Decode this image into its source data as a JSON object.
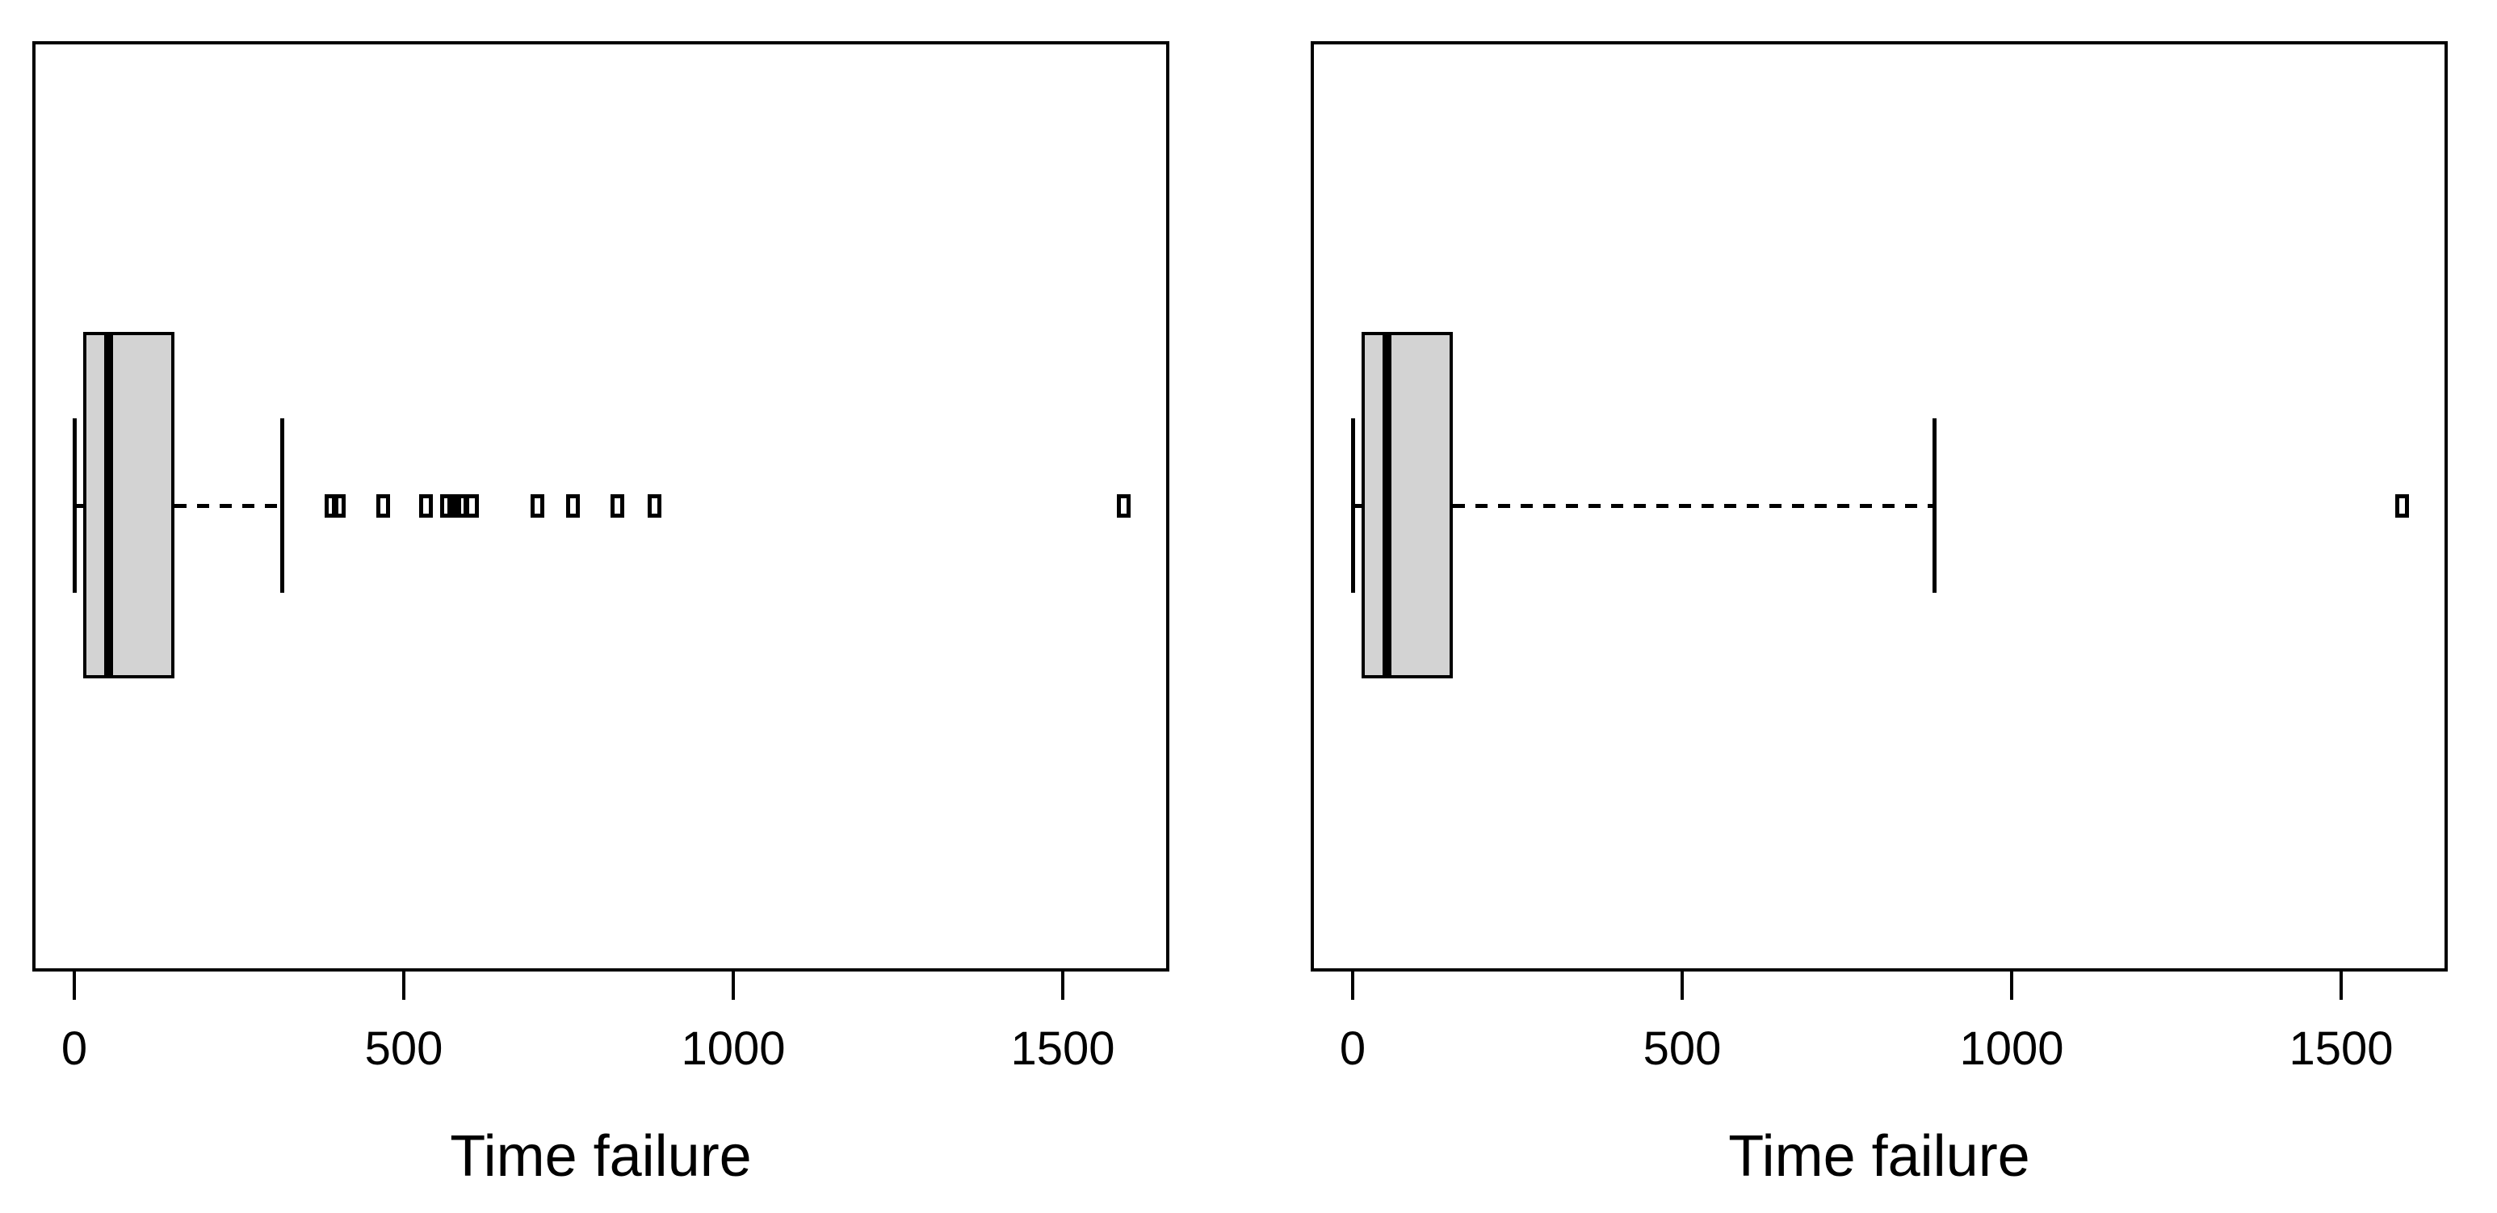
{
  "figure": {
    "background": "#ffffff",
    "stroke_color": "#000000",
    "box_fill": "#d3d3d3"
  },
  "chart_data": [
    {
      "type": "boxplot",
      "orientation": "horizontal",
      "title": "",
      "xlabel": "Time failure",
      "ylabel": "",
      "grid": false,
      "x_ticks": [
        "0",
        "500",
        "1000",
        "1500"
      ],
      "x_tick_values": [
        0,
        500,
        1000,
        1500
      ],
      "xlim": [
        -64,
        1662
      ],
      "stats": {
        "whisker_low": 0,
        "q1": 13,
        "median": 52,
        "q3": 152,
        "whisker_high": 315
      },
      "outliers": [
        390,
        401,
        469,
        534,
        565,
        576,
        586,
        603,
        703,
        757,
        824,
        880,
        1592
      ]
    },
    {
      "type": "boxplot",
      "orientation": "horizontal",
      "title": "",
      "xlabel": "Time failure",
      "ylabel": "",
      "grid": false,
      "x_ticks": [
        "0",
        "500",
        "1000",
        "1500"
      ],
      "x_tick_values": [
        0,
        500,
        1000,
        1500
      ],
      "xlim": [
        -64,
        1662
      ],
      "stats": {
        "whisker_low": 0,
        "q1": 13,
        "median": 52,
        "q3": 152,
        "whisker_high": 883
      },
      "outliers": [
        1592
      ]
    }
  ]
}
